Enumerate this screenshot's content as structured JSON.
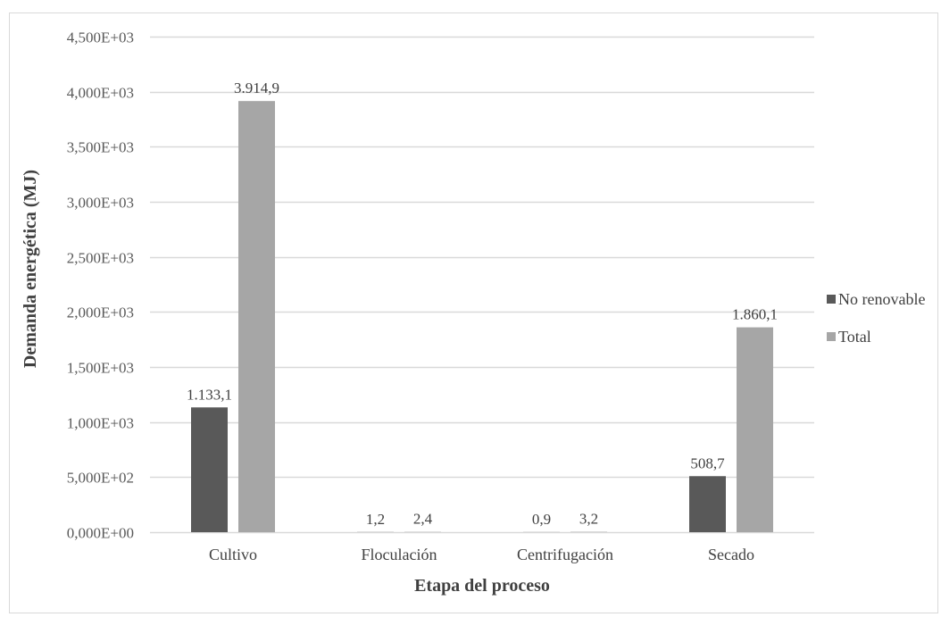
{
  "chart_data": {
    "type": "bar",
    "categories": [
      "Cultivo",
      "Floculación",
      "Centrifugación",
      "Secado"
    ],
    "series": [
      {
        "name": "No renovable",
        "values": [
          1133.1,
          1.2,
          0.9,
          508.7
        ],
        "labels": [
          "1.133,1",
          "1,2",
          "0,9",
          "508,7"
        ],
        "color": "#595959"
      },
      {
        "name": "Total",
        "values": [
          3914.9,
          2.4,
          3.2,
          1860.1
        ],
        "labels": [
          "3.914,9",
          "2,4",
          "3,2",
          "1.860,1"
        ],
        "color": "#a6a6a6"
      }
    ],
    "xlabel": "Etapa del proceso",
    "ylabel": "Demanda energética (MJ)",
    "ylim": [
      0,
      4500
    ],
    "yticks": [
      0,
      500,
      1000,
      1500,
      2000,
      2500,
      3000,
      3500,
      4000,
      4500
    ],
    "ytick_labels": [
      "0,000E+00",
      "5,000E+02",
      "1,000E+03",
      "1,500E+03",
      "2,000E+03",
      "2,500E+03",
      "3,000E+03",
      "3,500E+03",
      "4,000E+03",
      "4,500E+03"
    ],
    "grid": true,
    "legend_position": "right",
    "colors": {
      "gridline": "#d9d9d9",
      "border": "#d9d9d9"
    }
  }
}
